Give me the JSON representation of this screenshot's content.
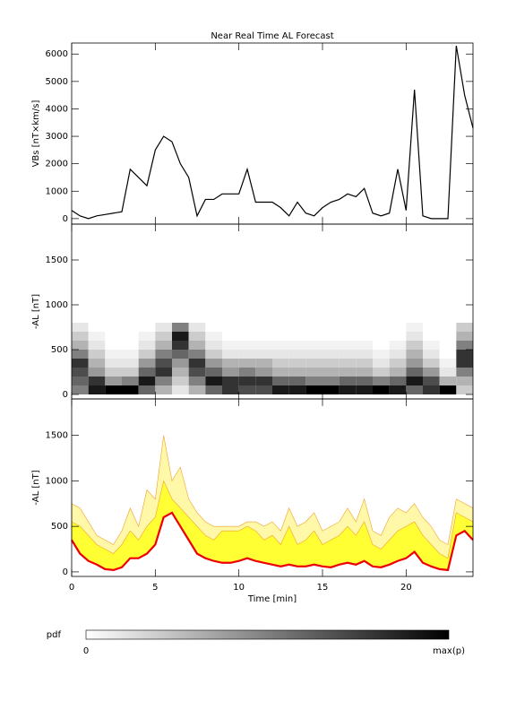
{
  "chart_data": [
    {
      "type": "line",
      "title": "Near Real Time AL Forecast",
      "ylabel": "VBs [nT×km/s]",
      "color": "#000000",
      "x": [
        0,
        0.5,
        1,
        1.5,
        2,
        2.5,
        3,
        3.5,
        4,
        4.5,
        5,
        5.5,
        6,
        6.5,
        7,
        7.5,
        8,
        8.5,
        9,
        9.5,
        10,
        10.5,
        11,
        11.5,
        12,
        12.5,
        13,
        13.5,
        14,
        14.5,
        15,
        15.5,
        16,
        16.5,
        17,
        17.5,
        18,
        18.5,
        19,
        19.5,
        20,
        20.5,
        21,
        21.5,
        22,
        22.5,
        23,
        23.5,
        24
      ],
      "values": [
        300,
        100,
        0,
        100,
        150,
        200,
        250,
        1800,
        1500,
        1200,
        2500,
        3000,
        2800,
        2000,
        1500,
        100,
        700,
        700,
        900,
        900,
        900,
        1800,
        600,
        600,
        600,
        400,
        100,
        600,
        200,
        100,
        400,
        600,
        700,
        900,
        800,
        1100,
        200,
        100,
        200,
        1800,
        300,
        4700,
        100,
        0,
        0,
        0,
        6300,
        4500,
        3300
      ],
      "xlim": [
        0,
        24
      ],
      "xticks": [
        0,
        5,
        10,
        15,
        20
      ],
      "ylim": [
        -200,
        6400
      ],
      "yticks": [
        0,
        1000,
        2000,
        3000,
        4000,
        5000,
        6000
      ]
    },
    {
      "type": "heatmap",
      "ylabel": "-AL [nT]",
      "x": [
        0,
        1,
        2,
        3,
        4,
        5,
        6,
        7,
        8,
        9,
        10,
        11,
        12,
        13,
        14,
        15,
        16,
        17,
        18,
        19,
        20,
        21,
        22,
        23
      ],
      "y": [
        0,
        100,
        200,
        300,
        400,
        500,
        600,
        700
      ],
      "values": [
        [
          0.5,
          0.9,
          1,
          1,
          0.6,
          0.3,
          0.1,
          0.3,
          0.6,
          0.8,
          0.7,
          0.7,
          0.9,
          0.9,
          1,
          1,
          0.9,
          0.9,
          1,
          0.9,
          0.6,
          0.8,
          1,
          0.2
        ],
        [
          0.6,
          0.8,
          0.4,
          0.5,
          0.9,
          0.5,
          0.2,
          0.5,
          0.9,
          0.8,
          0.8,
          0.8,
          0.6,
          0.6,
          0.5,
          0.5,
          0.6,
          0.6,
          0.5,
          0.6,
          0.9,
          0.7,
          0.3,
          0.3
        ],
        [
          0.7,
          0.4,
          0.2,
          0.2,
          0.6,
          0.8,
          0.3,
          0.7,
          0.6,
          0.4,
          0.5,
          0.4,
          0.3,
          0.3,
          0.3,
          0.3,
          0.3,
          0.3,
          0.2,
          0.3,
          0.6,
          0.4,
          0.1,
          0.5
        ],
        [
          0.8,
          0.3,
          0.1,
          0.1,
          0.4,
          0.7,
          0.4,
          0.8,
          0.4,
          0.3,
          0.3,
          0.3,
          0.2,
          0.2,
          0.2,
          0.2,
          0.2,
          0.2,
          0.1,
          0.2,
          0.4,
          0.2,
          0.05,
          0.8
        ],
        [
          0.5,
          0.2,
          0.05,
          0.05,
          0.2,
          0.5,
          0.6,
          0.5,
          0.2,
          0.1,
          0.1,
          0.1,
          0.1,
          0.1,
          0.1,
          0.1,
          0.1,
          0.1,
          0.05,
          0.1,
          0.3,
          0.1,
          0,
          0.8
        ],
        [
          0.3,
          0.1,
          0,
          0,
          0.1,
          0.3,
          0.8,
          0.3,
          0.1,
          0.05,
          0.05,
          0.05,
          0.05,
          0.05,
          0.05,
          0.05,
          0.05,
          0.05,
          0,
          0.05,
          0.2,
          0.05,
          0,
          0.5
        ],
        [
          0.2,
          0.05,
          0,
          0,
          0.05,
          0.2,
          0.9,
          0.2,
          0.05,
          0,
          0,
          0,
          0,
          0,
          0,
          0,
          0,
          0,
          0,
          0,
          0.1,
          0,
          0,
          0.3
        ],
        [
          0.1,
          0,
          0,
          0,
          0,
          0.1,
          0.5,
          0.1,
          0,
          0,
          0,
          0,
          0,
          0,
          0,
          0,
          0,
          0,
          0,
          0,
          0.05,
          0,
          0,
          0.2
        ]
      ],
      "xlim": [
        0,
        24
      ],
      "xticks": [
        0,
        5,
        10,
        15,
        20
      ],
      "ylim": [
        -50,
        1900
      ],
      "yticks": [
        0,
        500,
        1000,
        1500
      ]
    },
    {
      "type": "band",
      "ylabel": "-AL [nT]",
      "xlabel": "Time [min]",
      "outline": "#f0a030",
      "x": [
        0,
        0.5,
        1,
        1.5,
        2,
        2.5,
        3,
        3.5,
        4,
        4.5,
        5,
        5.5,
        6,
        6.5,
        7,
        7.5,
        8,
        8.5,
        9,
        9.5,
        10,
        10.5,
        11,
        11.5,
        12,
        12.5,
        13,
        13.5,
        14,
        14.5,
        15,
        15.5,
        16,
        16.5,
        17,
        17.5,
        18,
        18.5,
        19,
        19.5,
        20,
        20.5,
        21,
        21.5,
        22,
        22.5,
        23,
        23.5,
        24
      ],
      "series": [
        {
          "color": "#fff8a8",
          "values": [
            750,
            700,
            550,
            400,
            350,
            300,
            450,
            700,
            500,
            900,
            800,
            1500,
            1000,
            1150,
            800,
            650,
            550,
            500,
            500,
            500,
            500,
            550,
            550,
            500,
            550,
            450,
            700,
            500,
            550,
            650,
            450,
            500,
            550,
            700,
            550,
            800,
            450,
            400,
            600,
            700,
            650,
            750,
            600,
            500,
            350,
            300,
            800,
            750,
            700
          ]
        },
        {
          "color": "#ffff33",
          "values": [
            550,
            500,
            400,
            300,
            250,
            200,
            300,
            450,
            350,
            500,
            600,
            1000,
            800,
            700,
            600,
            500,
            400,
            350,
            450,
            450,
            450,
            500,
            450,
            350,
            400,
            300,
            500,
            300,
            350,
            450,
            300,
            350,
            400,
            500,
            400,
            550,
            300,
            250,
            350,
            450,
            500,
            550,
            400,
            300,
            200,
            150,
            650,
            600,
            550
          ]
        },
        {
          "color": "#ee0000",
          "values": [
            350,
            200,
            120,
            80,
            30,
            20,
            50,
            150,
            150,
            200,
            300,
            600,
            650,
            500,
            350,
            200,
            150,
            120,
            100,
            100,
            120,
            150,
            120,
            100,
            80,
            60,
            80,
            60,
            60,
            80,
            60,
            50,
            80,
            100,
            80,
            120,
            60,
            50,
            80,
            120,
            150,
            220,
            100,
            60,
            30,
            20,
            400,
            450,
            350
          ]
        }
      ],
      "xlim": [
        0,
        24
      ],
      "xticks": [
        0,
        5,
        10,
        15,
        20
      ],
      "ylim": [
        -50,
        1900
      ],
      "yticks": [
        0,
        500,
        1000,
        1500
      ]
    }
  ],
  "colorbar": {
    "label": "pdf",
    "min_label": "0",
    "max_label": "max(p)"
  }
}
